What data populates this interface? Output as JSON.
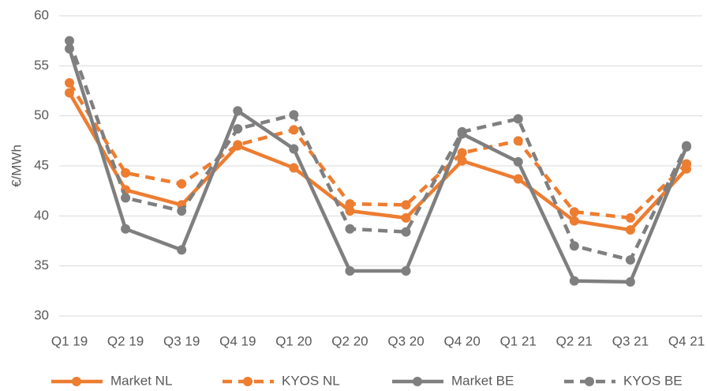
{
  "chart_data": {
    "type": "line",
    "y_label": "€/MWh",
    "categories": [
      "Q1 19",
      "Q2 19",
      "Q3 19",
      "Q4 19",
      "Q1 20",
      "Q2 20",
      "Q3 20",
      "Q4 20",
      "Q1 21",
      "Q2 21",
      "Q3 21",
      "Q4 21"
    ],
    "series": [
      {
        "name": "Market NL",
        "color": "#ed7d31",
        "line_style": "solid",
        "values": [
          52.3,
          42.6,
          41.1,
          47.0,
          44.8,
          40.5,
          39.8,
          45.5,
          43.7,
          39.5,
          38.6,
          44.7
        ]
      },
      {
        "name": "KYOS NL",
        "color": "#ed7d31",
        "line_style": "dashed",
        "values": [
          53.3,
          44.3,
          43.2,
          47.1,
          48.6,
          41.2,
          41.1,
          46.3,
          47.5,
          40.4,
          39.8,
          45.2
        ]
      },
      {
        "name": "Market BE",
        "color": "#7f7f7f",
        "line_style": "solid",
        "values": [
          56.7,
          38.7,
          36.6,
          50.5,
          46.7,
          34.5,
          34.5,
          48.2,
          45.4,
          33.5,
          33.4,
          46.9
        ]
      },
      {
        "name": "KYOS BE",
        "color": "#7f7f7f",
        "line_style": "dashed",
        "values": [
          57.5,
          41.8,
          40.5,
          48.7,
          50.1,
          38.7,
          38.4,
          48.4,
          49.7,
          37.0,
          35.6,
          47.0
        ]
      }
    ],
    "ylim": [
      30,
      60
    ],
    "yticks": [
      30,
      35,
      40,
      45,
      50,
      55,
      60
    ],
    "grid": true,
    "legend": "bottom"
  }
}
